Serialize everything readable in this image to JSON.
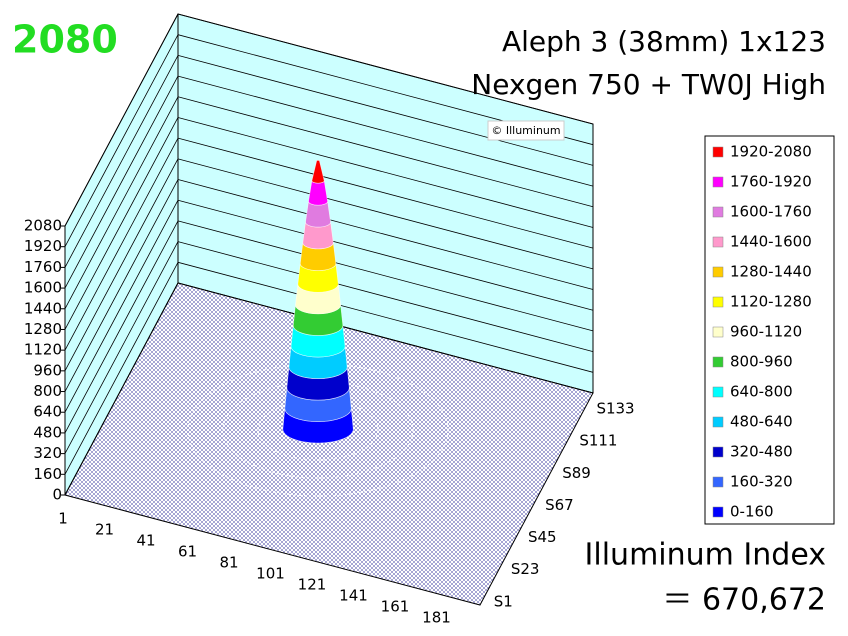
{
  "chart_data": {
    "type": "surface3d",
    "peak_value": 2080,
    "title_lines": [
      "Aleph 3 (38mm) 1x123",
      "Nexgen 750 + TW0J High"
    ],
    "watermark": "© Illuminum",
    "categories": [
      "1",
      "21",
      "41",
      "61",
      "81",
      "101",
      "121",
      "141",
      "161",
      "181"
    ],
    "series_labels": [
      "S1",
      "S23",
      "S45",
      "S67",
      "S89",
      "S111",
      "S133"
    ],
    "zlim": [
      0,
      2080
    ],
    "zticks": [
      0,
      160,
      320,
      480,
      640,
      800,
      960,
      1120,
      1280,
      1440,
      1600,
      1760,
      1920,
      2080
    ],
    "grid": true,
    "bands": [
      {
        "label": "1920-2080",
        "color": "#ff0000",
        "from": 1920,
        "to": 2080
      },
      {
        "label": "1760-1920",
        "color": "#ff00ff",
        "from": 1760,
        "to": 1920
      },
      {
        "label": "1600-1760",
        "color": "#e07be0",
        "from": 1600,
        "to": 1760
      },
      {
        "label": "1440-1600",
        "color": "#ff99cc",
        "from": 1440,
        "to": 1600
      },
      {
        "label": "1280-1440",
        "color": "#ffcc00",
        "from": 1280,
        "to": 1440
      },
      {
        "label": "1120-1280",
        "color": "#ffff00",
        "from": 1120,
        "to": 1280
      },
      {
        "label": "960-1120",
        "color": "#ffffcc",
        "from": 960,
        "to": 1120
      },
      {
        "label": "800-960",
        "color": "#33cc33",
        "from": 800,
        "to": 960
      },
      {
        "label": "640-800",
        "color": "#00ffff",
        "from": 640,
        "to": 800
      },
      {
        "label": "480-640",
        "color": "#00ccff",
        "from": 480,
        "to": 640
      },
      {
        "label": "320-480",
        "color": "#0000cc",
        "from": 320,
        "to": 480
      },
      {
        "label": "160-320",
        "color": "#3366ff",
        "from": 160,
        "to": 320
      },
      {
        "label": "0-160",
        "color": "#0000ff",
        "from": 0,
        "to": 160
      }
    ],
    "index_label": "Illuminum Index",
    "index_text": "＝ 670,672"
  }
}
